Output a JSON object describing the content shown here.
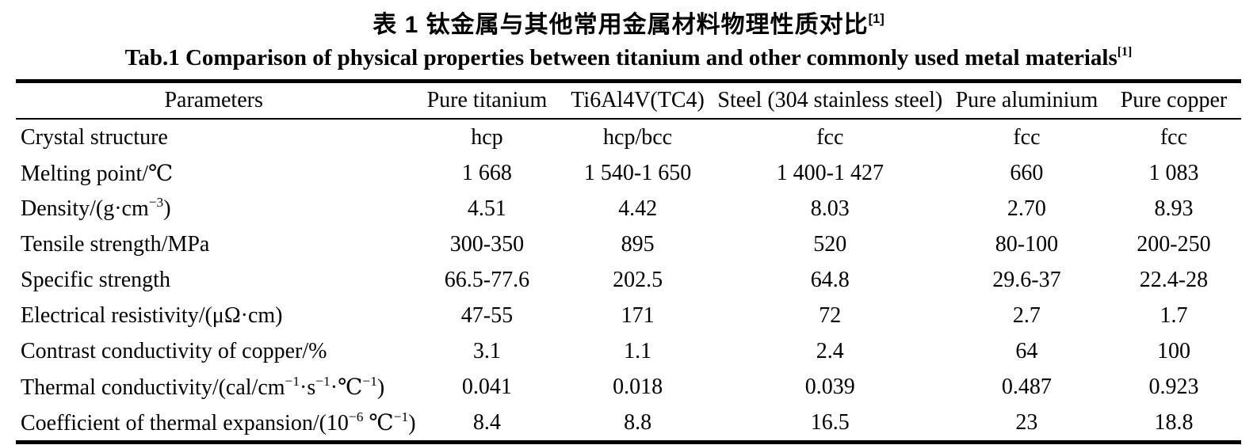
{
  "page": {
    "background_color": "#ffffff",
    "text_color": "#000000"
  },
  "titles": {
    "chinese": "表 1  钛金属与其他常用金属材料物理性质对比",
    "chinese_ref": "[1]",
    "english": "Tab.1 Comparison of physical properties between titanium and other commonly used metal materials",
    "english_ref": "[1]"
  },
  "chart_data": {
    "type": "table",
    "title": "Tab.1 Comparison of physical properties between titanium and other commonly used metal materials[1]",
    "title_chinese": "表 1 钛金属与其他常用金属材料物理性质对比[1]",
    "columns": [
      "Parameters",
      "Pure titanium",
      "Ti6Al4V(TC4)",
      "Steel (304 stainless steel)",
      "Pure aluminium",
      "Pure copper"
    ],
    "rows": [
      {
        "param_text": "Crystal structure",
        "param": [
          {
            "t": "Crystal structure"
          }
        ],
        "values": [
          "hcp",
          "hcp/bcc",
          "fcc",
          "fcc",
          "fcc"
        ]
      },
      {
        "param_text": "Melting point/℃",
        "param": [
          {
            "t": "Melting point/℃"
          }
        ],
        "values": [
          "1 668",
          "1 540-1 650",
          "1 400-1 427",
          "660",
          "1 083"
        ]
      },
      {
        "param_text": "Density/(g·cm−3)",
        "param": [
          {
            "t": "Density/(g·cm"
          },
          {
            "t": "−3",
            "sup": true
          },
          {
            "t": ")"
          }
        ],
        "values": [
          "4.51",
          "4.42",
          "8.03",
          "2.70",
          "8.93"
        ]
      },
      {
        "param_text": "Tensile strength/MPa",
        "param": [
          {
            "t": "Tensile strength/MPa"
          }
        ],
        "values": [
          "300-350",
          "895",
          "520",
          "80-100",
          "200-250"
        ]
      },
      {
        "param_text": "Specific strength",
        "param": [
          {
            "t": "Specific strength"
          }
        ],
        "values": [
          "66.5-77.6",
          "202.5",
          "64.8",
          "29.6-37",
          "22.4-28"
        ]
      },
      {
        "param_text": "Electrical resistivity/(μΩ·cm)",
        "param": [
          {
            "t": "Electrical resistivity/(μΩ·cm)"
          }
        ],
        "values": [
          "47-55",
          "171",
          "72",
          "2.7",
          "1.7"
        ]
      },
      {
        "param_text": "Contrast conductivity of copper/%",
        "param": [
          {
            "t": "Contrast conductivity of copper/%"
          }
        ],
        "values": [
          "3.1",
          "1.1",
          "2.4",
          "64",
          "100"
        ]
      },
      {
        "param_text": "Thermal conductivity/(cal/cm−1·s−1·℃−1)",
        "param": [
          {
            "t": "Thermal conductivity/(cal/cm"
          },
          {
            "t": "−1",
            "sup": true
          },
          {
            "t": "·s"
          },
          {
            "t": "−1",
            "sup": true
          },
          {
            "t": "·℃"
          },
          {
            "t": "−1",
            "sup": true
          },
          {
            "t": ")"
          }
        ],
        "values": [
          "0.041",
          "0.018",
          "0.039",
          "0.487",
          "0.923"
        ]
      },
      {
        "param_text": "Coefficient of thermal expansion/(10−6 ℃−1)",
        "param": [
          {
            "t": "Coefficient of thermal expansion/(10"
          },
          {
            "t": "−6",
            "sup": true
          },
          {
            "t": "  ℃"
          },
          {
            "t": "−1",
            "sup": true
          },
          {
            "t": ")"
          }
        ],
        "values": [
          "8.4",
          "8.8",
          "16.5",
          "23",
          "18.8"
        ]
      }
    ]
  }
}
